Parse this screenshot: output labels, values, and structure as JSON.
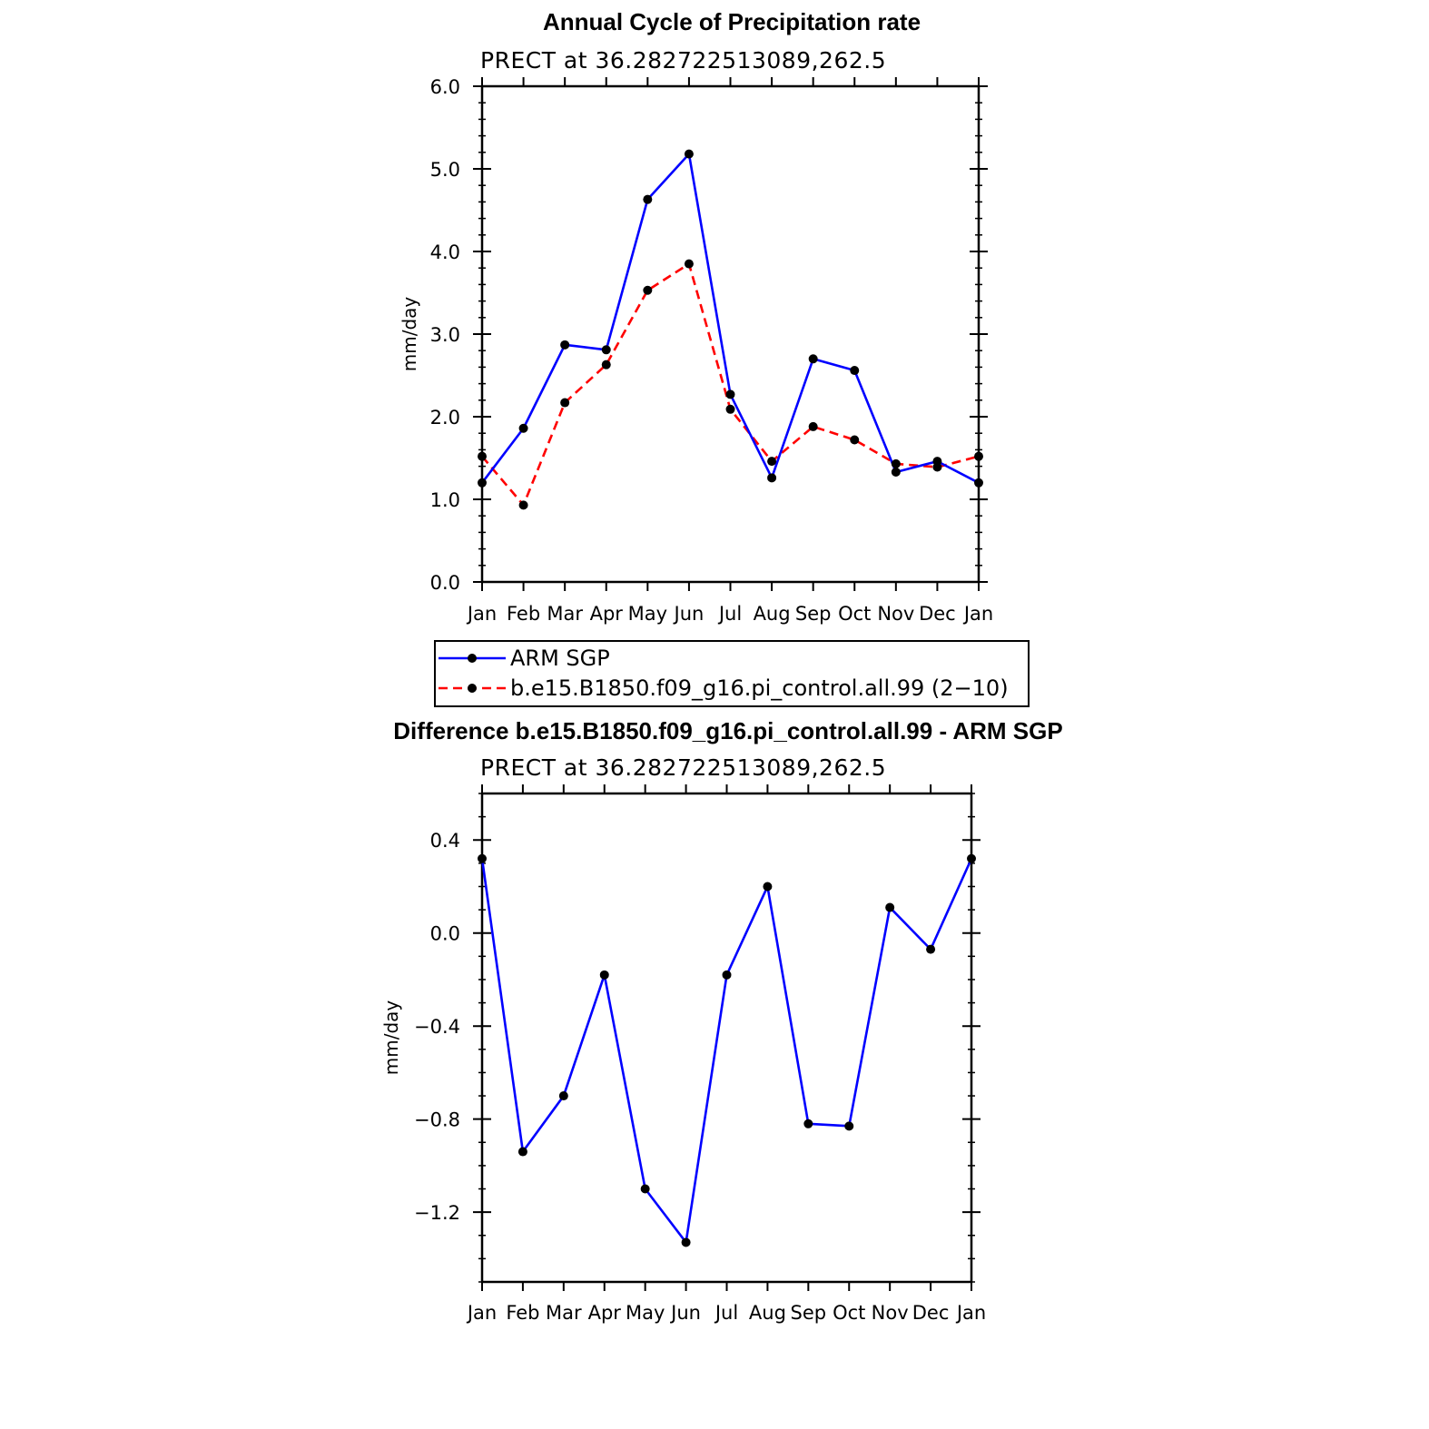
{
  "chart_data": [
    {
      "type": "line",
      "title": "Annual Cycle of Precipitation rate",
      "subtitle": "PRECT at 36.282722513089,262.5",
      "xlabel": "",
      "ylabel": "mm/day",
      "categories": [
        "Jan",
        "Feb",
        "Mar",
        "Apr",
        "May",
        "Jun",
        "Jul",
        "Aug",
        "Sep",
        "Oct",
        "Nov",
        "Dec",
        "Jan"
      ],
      "ylim": [
        0.0,
        6.0
      ],
      "yticks": [
        "0.0",
        "1.0",
        "2.0",
        "3.0",
        "4.0",
        "5.0",
        "6.0"
      ],
      "series": [
        {
          "name": "ARM SGP",
          "color": "#0000ff",
          "style": "solid",
          "values": [
            1.2,
            1.86,
            2.87,
            2.81,
            4.63,
            5.18,
            2.27,
            1.26,
            2.7,
            2.56,
            1.33,
            1.46,
            1.2
          ]
        },
        {
          "name": "b.e15.B1850.f09_g16.pi_control.all.99 (2−10)",
          "color": "#ff0000",
          "style": "dashed",
          "values": [
            1.52,
            0.93,
            2.17,
            2.63,
            3.53,
            3.85,
            2.09,
            1.46,
            1.88,
            1.72,
            1.43,
            1.39,
            1.52
          ]
        }
      ]
    },
    {
      "type": "line",
      "title": "Difference b.e15.B1850.f09_g16.pi_control.all.99 - ARM SGP",
      "subtitle": "PRECT at 36.282722513089,262.5",
      "xlabel": "",
      "ylabel": "mm/day",
      "categories": [
        "Jan",
        "Feb",
        "Mar",
        "Apr",
        "May",
        "Jun",
        "Jul",
        "Aug",
        "Sep",
        "Oct",
        "Nov",
        "Dec",
        "Jan"
      ],
      "ylim": [
        -1.5,
        0.6
      ],
      "yticks": [
        "−1.2",
        "−0.8",
        "−0.4",
        "0.0",
        "0.4"
      ],
      "series": [
        {
          "name": "Difference",
          "color": "#0000ff",
          "style": "solid",
          "values": [
            0.32,
            -0.94,
            -0.7,
            -0.18,
            -1.1,
            -1.33,
            -0.18,
            0.2,
            -0.82,
            -0.83,
            0.11,
            -0.07,
            0.32
          ]
        }
      ]
    }
  ]
}
